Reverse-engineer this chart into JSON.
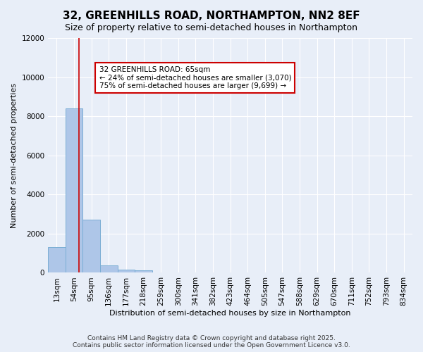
{
  "title": "32, GREENHILLS ROAD, NORTHAMPTON, NN2 8EF",
  "subtitle": "Size of property relative to semi-detached houses in Northampton",
  "xlabel": "Distribution of semi-detached houses by size in Northampton",
  "ylabel": "Number of semi-detached properties",
  "bin_labels": [
    "13sqm",
    "54sqm",
    "95sqm",
    "136sqm",
    "177sqm",
    "218sqm",
    "259sqm",
    "300sqm",
    "341sqm",
    "382sqm",
    "423sqm",
    "464sqm",
    "505sqm",
    "547sqm",
    "588sqm",
    "629sqm",
    "670sqm",
    "711sqm",
    "752sqm",
    "793sqm",
    "834sqm"
  ],
  "bar_heights": [
    1300,
    8400,
    2700,
    375,
    150,
    125,
    0,
    0,
    0,
    0,
    0,
    0,
    0,
    0,
    0,
    0,
    0,
    0,
    0,
    0,
    0
  ],
  "bar_color": "#aec6e8",
  "bar_edge_color": "#7aadd4",
  "background_color": "#e8eef8",
  "grid_color": "#ffffff",
  "red_line_x": 1.27,
  "ylim": [
    0,
    12000
  ],
  "yticks": [
    0,
    2000,
    4000,
    6000,
    8000,
    10000,
    12000
  ],
  "annotation_title": "32 GREENHILLS ROAD: 65sqm",
  "annotation_line1": "← 24% of semi-detached houses are smaller (3,070)",
  "annotation_line2": "75% of semi-detached houses are larger (9,699) →",
  "annotation_box_color": "#ffffff",
  "annotation_border_color": "#cc0000",
  "footer_line1": "Contains HM Land Registry data © Crown copyright and database right 2025.",
  "footer_line2": "Contains public sector information licensed under the Open Government Licence v3.0.",
  "title_fontsize": 11,
  "subtitle_fontsize": 9,
  "axis_fontsize": 8,
  "tick_fontsize": 7.5,
  "annotation_fontsize": 7.5,
  "footer_fontsize": 6.5
}
